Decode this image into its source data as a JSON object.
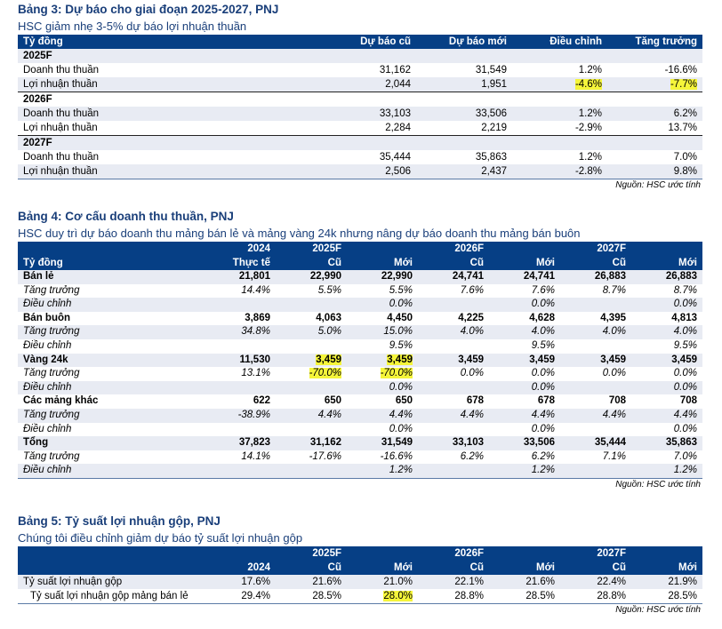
{
  "table3": {
    "title": "Bảng 3: Dự báo cho giai đoạn 2025-2027, PNJ",
    "subtitle": "HSC giảm nhẹ 3-5% dự báo lợi nhuận thuần",
    "headers": [
      "Tỷ đồng",
      "Dự báo cũ",
      "Dự báo mới",
      "Điều chỉnh",
      "Tăng trưởng"
    ],
    "groups": [
      {
        "year": "2025F",
        "rows": [
          {
            "label": "Doanh thu thuần",
            "old": "31,162",
            "new": "31,549",
            "adj": "1.2%",
            "growth": "-16.6%"
          },
          {
            "label": "Lợi nhuận thuần",
            "old": "2,044",
            "new": "1,951",
            "adj": "-4.6%",
            "growth": "-7.7%"
          }
        ]
      },
      {
        "year": "2026F",
        "rows": [
          {
            "label": "Doanh thu thuần",
            "old": "33,103",
            "new": "33,506",
            "adj": "1.2%",
            "growth": "6.2%"
          },
          {
            "label": "Lợi nhuận thuần",
            "old": "2,284",
            "new": "2,219",
            "adj": "-2.9%",
            "growth": "13.7%"
          }
        ]
      },
      {
        "year": "2027F",
        "rows": [
          {
            "label": "Doanh thu thuần",
            "old": "35,444",
            "new": "35,863",
            "adj": "1.2%",
            "growth": "7.0%"
          },
          {
            "label": "Lợi nhuận thuần",
            "old": "2,506",
            "new": "2,437",
            "adj": "-2.8%",
            "growth": "9.8%"
          }
        ]
      }
    ],
    "source": "Nguồn: HSC ước tính"
  },
  "table4": {
    "title": "Bảng 4: Cơ cấu doanh thu thuần, PNJ",
    "subtitle": "HSC duy trì dự báo doanh thu mảng bán lẻ và mảng vàng 24k nhưng nâng dự báo doanh thu mảng bán buôn",
    "header_top": [
      "",
      "2024",
      "2025F",
      "",
      "2026F",
      "",
      "2027F",
      ""
    ],
    "header_bottom": [
      "Tỷ đồng",
      "Thực tế",
      "Cũ",
      "Mới",
      "Cũ",
      "Mới",
      "Cũ",
      "Mới"
    ],
    "rows": [
      {
        "type": "b",
        "cells": [
          "Bán lẻ",
          "21,801",
          "22,990",
          "22,990",
          "24,741",
          "24,741",
          "26,883",
          "26,883"
        ]
      },
      {
        "type": "i",
        "cells": [
          "Tăng trưởng",
          "14.4%",
          "5.5%",
          "5.5%",
          "7.6%",
          "7.6%",
          "8.7%",
          "8.7%"
        ]
      },
      {
        "type": "i",
        "cells": [
          "Điều chỉnh",
          "",
          "",
          "0.0%",
          "",
          "0.0%",
          "",
          "0.0%"
        ]
      },
      {
        "type": "b",
        "cells": [
          "Bán buôn",
          "3,869",
          "4,063",
          "4,450",
          "4,225",
          "4,628",
          "4,395",
          "4,813"
        ]
      },
      {
        "type": "i",
        "cells": [
          "Tăng trưởng",
          "34.8%",
          "5.0%",
          "15.0%",
          "4.0%",
          "4.0%",
          "4.0%",
          "4.0%"
        ]
      },
      {
        "type": "i",
        "cells": [
          "Điều chỉnh",
          "",
          "",
          "9.5%",
          "",
          "9.5%",
          "",
          "9.5%"
        ]
      },
      {
        "type": "b",
        "cells": [
          "Vàng 24k",
          "11,530",
          "3,459",
          "3,459",
          "3,459",
          "3,459",
          "3,459",
          "3,459"
        ]
      },
      {
        "type": "i",
        "cells": [
          "Tăng trưởng",
          "13.1%",
          "-70.0%",
          "-70.0%",
          "0.0%",
          "0.0%",
          "0.0%",
          "0.0%"
        ]
      },
      {
        "type": "i",
        "cells": [
          "Điều chỉnh",
          "",
          "",
          "0.0%",
          "",
          "0.0%",
          "",
          "0.0%"
        ]
      },
      {
        "type": "b",
        "cells": [
          "Các mảng khác",
          "622",
          "650",
          "650",
          "678",
          "678",
          "708",
          "708"
        ]
      },
      {
        "type": "i",
        "cells": [
          "Tăng trưởng",
          "-38.9%",
          "4.4%",
          "4.4%",
          "4.4%",
          "4.4%",
          "4.4%",
          "4.4%"
        ]
      },
      {
        "type": "i",
        "cells": [
          "Điều chỉnh",
          "",
          "",
          "0.0%",
          "",
          "0.0%",
          "",
          "0.0%"
        ]
      },
      {
        "type": "b",
        "cells": [
          "Tổng",
          "37,823",
          "31,162",
          "31,549",
          "33,103",
          "33,506",
          "35,444",
          "35,863"
        ]
      },
      {
        "type": "i",
        "cells": [
          "Tăng trưởng",
          "14.1%",
          "-17.6%",
          "-16.6%",
          "6.2%",
          "6.2%",
          "7.1%",
          "7.0%"
        ]
      },
      {
        "type": "i",
        "cells": [
          "Điều chỉnh",
          "",
          "",
          "1.2%",
          "",
          "1.2%",
          "",
          "1.2%"
        ]
      }
    ],
    "source": "Nguồn: HSC ước tính"
  },
  "table5": {
    "title": "Bảng 5: Tỷ suất lợi nhuận gộp, PNJ",
    "subtitle": "Chúng tôi điều chỉnh giảm dự báo tỷ suất lợi nhuận gộp",
    "header_top": [
      "",
      "",
      "2025F",
      "",
      "2026F",
      "",
      "2027F",
      ""
    ],
    "header_bottom": [
      "",
      "2024",
      "Cũ",
      "Mới",
      "Cũ",
      "Mới",
      "Cũ",
      "Mới"
    ],
    "rows": [
      {
        "cells": [
          "Tỷ suất lợi nhuận gộp",
          "17.6%",
          "21.6%",
          "21.0%",
          "22.1%",
          "21.6%",
          "22.4%",
          "21.9%"
        ]
      },
      {
        "cells": [
          "Tỷ suất lợi nhuận gộp mảng bán lẻ",
          "29.4%",
          "28.5%",
          "28.0%",
          "28.8%",
          "28.5%",
          "28.8%",
          "28.5%"
        ]
      }
    ],
    "source": "Nguồn: HSC ước tính"
  },
  "highlight_color": "#f5f53a",
  "header_color": "#063f85",
  "title_color": "#1a3f7a"
}
